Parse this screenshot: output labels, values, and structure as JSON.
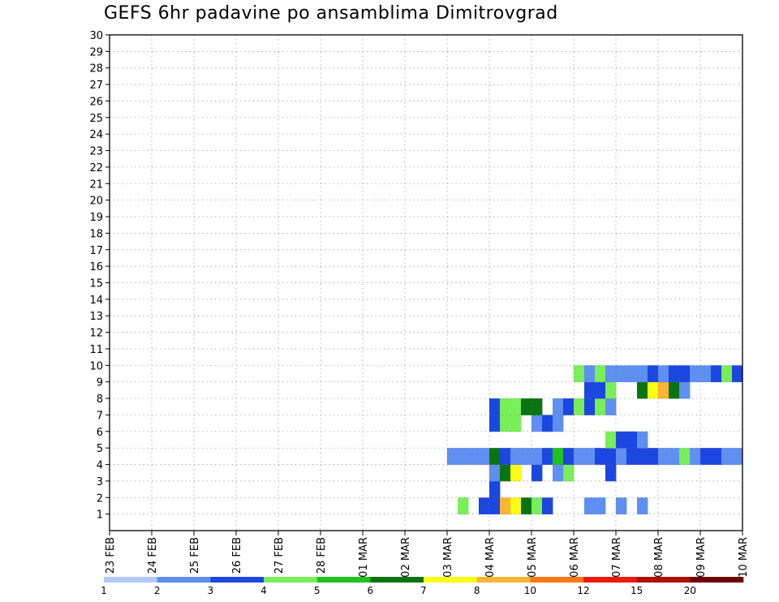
{
  "chart_data": {
    "type": "heatmap",
    "title": "GEFS 6hr padavine po ansamblima Dimitrovgrad",
    "x_ticks": [
      "23 FEB",
      "24 FEB",
      "25 FEB",
      "26 FEB",
      "27 FEB",
      "28 FEB",
      "01 MAR",
      "02 MAR",
      "03 MAR",
      "04 MAR",
      "05 MAR",
      "06 MAR",
      "07 MAR",
      "08 MAR",
      "09 MAR",
      "10 MAR"
    ],
    "y_ticks": [
      "1",
      "2",
      "3",
      "4",
      "5",
      "6",
      "7",
      "8",
      "9",
      "10",
      "11",
      "12",
      "13",
      "14",
      "15",
      "16",
      "17",
      "18",
      "19",
      "20",
      "21",
      "22",
      "23",
      "24",
      "25",
      "26",
      "27",
      "28",
      "29",
      "30"
    ],
    "xlim": [
      0,
      60
    ],
    "ylim": [
      0,
      30
    ],
    "grid": true,
    "legend_labels": [
      "1",
      "2",
      "3",
      "4",
      "5",
      "6",
      "7",
      "8",
      "10",
      "12",
      "15",
      "20"
    ],
    "legend_colors": [
      "#b4c8f8",
      "#5f8ff0",
      "#1c46e0",
      "#78ee58",
      "#21c21e",
      "#0a7412",
      "#fcfc14",
      "#fcb432",
      "#fc7814",
      "#e81c0c",
      "#b01008",
      "#6e0208"
    ],
    "cells": [
      [
        33,
        1,
        3
      ],
      [
        35,
        1,
        2
      ],
      [
        36,
        1,
        2
      ],
      [
        37,
        1,
        7
      ],
      [
        38,
        1,
        6
      ],
      [
        39,
        1,
        5
      ],
      [
        40,
        1,
        3
      ],
      [
        41,
        1,
        2
      ],
      [
        45,
        1,
        1
      ],
      [
        46,
        1,
        1
      ],
      [
        48,
        1,
        1
      ],
      [
        50,
        1,
        1
      ],
      [
        36,
        2,
        2
      ],
      [
        36,
        3,
        1
      ],
      [
        37,
        3,
        5
      ],
      [
        38,
        3,
        6
      ],
      [
        40,
        3,
        2
      ],
      [
        42,
        3,
        1
      ],
      [
        43,
        3,
        3
      ],
      [
        47,
        3,
        2
      ],
      [
        32,
        4,
        1
      ],
      [
        33,
        4,
        1
      ],
      [
        34,
        4,
        1
      ],
      [
        35,
        4,
        1
      ],
      [
        36,
        4,
        5
      ],
      [
        37,
        4,
        2
      ],
      [
        38,
        4,
        1
      ],
      [
        39,
        4,
        1
      ],
      [
        40,
        4,
        1
      ],
      [
        41,
        4,
        2
      ],
      [
        42,
        4,
        4
      ],
      [
        43,
        4,
        2
      ],
      [
        44,
        4,
        1
      ],
      [
        45,
        4,
        1
      ],
      [
        46,
        4,
        2
      ],
      [
        47,
        4,
        2
      ],
      [
        48,
        4,
        1
      ],
      [
        49,
        4,
        2
      ],
      [
        50,
        4,
        2
      ],
      [
        51,
        4,
        2
      ],
      [
        52,
        4,
        1
      ],
      [
        53,
        4,
        1
      ],
      [
        54,
        4,
        3
      ],
      [
        55,
        4,
        1
      ],
      [
        56,
        4,
        2
      ],
      [
        57,
        4,
        2
      ],
      [
        58,
        4,
        1
      ],
      [
        59,
        4,
        1
      ],
      [
        47,
        5,
        3
      ],
      [
        48,
        5,
        2
      ],
      [
        49,
        5,
        2
      ],
      [
        50,
        5,
        1
      ],
      [
        36,
        6,
        2
      ],
      [
        37,
        6,
        3
      ],
      [
        38,
        6,
        3
      ],
      [
        40,
        6,
        1
      ],
      [
        41,
        6,
        2
      ],
      [
        42,
        6,
        1
      ],
      [
        36,
        7,
        2
      ],
      [
        37,
        7,
        3
      ],
      [
        38,
        7,
        3
      ],
      [
        39,
        7,
        5
      ],
      [
        40,
        7,
        5
      ],
      [
        42,
        7,
        1
      ],
      [
        43,
        7,
        2
      ],
      [
        44,
        7,
        3
      ],
      [
        45,
        7,
        2
      ],
      [
        46,
        7,
        3
      ],
      [
        47,
        7,
        1
      ],
      [
        45,
        8,
        2
      ],
      [
        46,
        8,
        2
      ],
      [
        47,
        8,
        3
      ],
      [
        50,
        8,
        5
      ],
      [
        51,
        8,
        6
      ],
      [
        52,
        8,
        7
      ],
      [
        53,
        8,
        5
      ],
      [
        54,
        8,
        1
      ],
      [
        44,
        9,
        3
      ],
      [
        45,
        9,
        1
      ],
      [
        46,
        9,
        3
      ],
      [
        47,
        9,
        1
      ],
      [
        48,
        9,
        1
      ],
      [
        49,
        9,
        1
      ],
      [
        50,
        9,
        1
      ],
      [
        51,
        9,
        2
      ],
      [
        52,
        9,
        1
      ],
      [
        53,
        9,
        2
      ],
      [
        54,
        9,
        2
      ],
      [
        55,
        9,
        1
      ],
      [
        56,
        9,
        1
      ],
      [
        57,
        9,
        2
      ],
      [
        58,
        9,
        3
      ],
      [
        59,
        9,
        2
      ]
    ]
  }
}
